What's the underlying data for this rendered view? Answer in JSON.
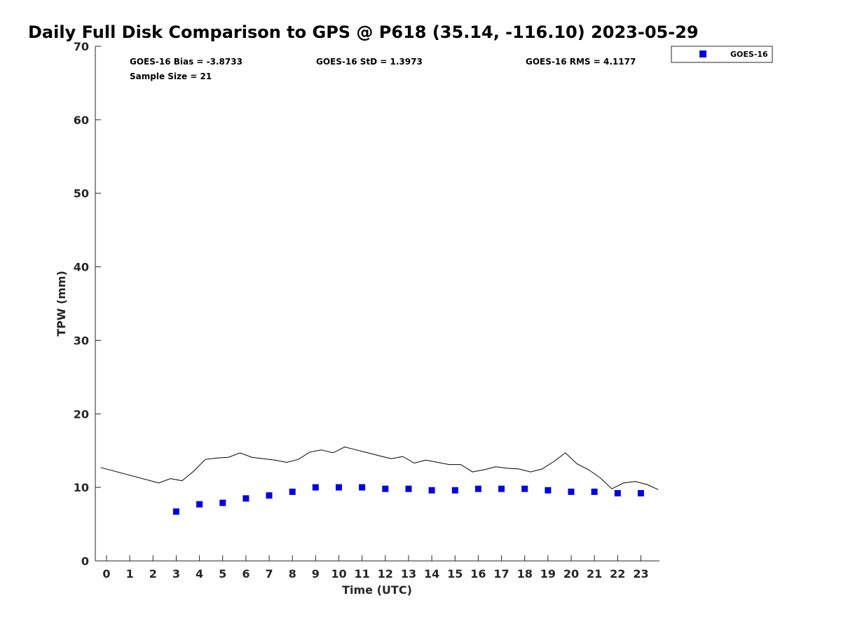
{
  "chart_data": {
    "type": "scatter",
    "title": "Daily Full Disk Comparison to GPS @ P618 (35.14, -116.10) 2023-05-29",
    "xlabel": "Time (UTC)",
    "ylabel": "TPW (mm)",
    "xlim": [
      -0.5,
      23.8
    ],
    "ylim": [
      0,
      70
    ],
    "x_ticks": [
      0,
      1,
      2,
      3,
      4,
      5,
      6,
      7,
      8,
      9,
      10,
      11,
      12,
      13,
      14,
      15,
      16,
      17,
      18,
      19,
      20,
      21,
      22,
      23
    ],
    "y_ticks": [
      0,
      10,
      20,
      30,
      40,
      50,
      60,
      70
    ],
    "grid": false,
    "legend_position": "top-right",
    "stats": {
      "bias": "GOES-16 Bias = -3.8733",
      "std": "GOES-16 StD = 1.3973",
      "rms": "GOES-16 RMS = 4.1177",
      "sample": "Sample Size = 21"
    },
    "series": [
      {
        "name": "GOES-16",
        "style": "markers",
        "color": "#0000e6",
        "x": [
          3,
          4,
          5,
          6,
          7,
          8,
          9,
          10,
          11,
          12,
          13,
          14,
          15,
          16,
          17,
          18,
          19,
          20,
          21,
          22,
          23
        ],
        "y": [
          6.7,
          7.7,
          7.9,
          8.5,
          8.9,
          9.4,
          10.0,
          10.0,
          10.0,
          9.8,
          9.8,
          9.6,
          9.6,
          9.8,
          9.8,
          9.8,
          9.6,
          9.4,
          9.4,
          9.2,
          9.2
        ]
      },
      {
        "style": "line",
        "color": "#000000",
        "x": [
          -0.25,
          2.25,
          2.75,
          3.25,
          3.75,
          4.25,
          4.75,
          5.25,
          5.75,
          6.25,
          6.75,
          7.25,
          7.75,
          8.25,
          8.75,
          9.25,
          9.75,
          10.25,
          10.75,
          11.25,
          11.75,
          12.25,
          12.75,
          13.25,
          13.75,
          14.25,
          14.75,
          15.25,
          15.75,
          16.25,
          16.75,
          17.25,
          17.75,
          18.25,
          18.75,
          19.25,
          19.75,
          20.25,
          20.75,
          21.25,
          21.75,
          22.25,
          22.75,
          23.25,
          23.75
        ],
        "y": [
          12.7,
          10.6,
          11.2,
          10.9,
          12.2,
          13.8,
          14.0,
          14.1,
          14.7,
          14.1,
          13.9,
          13.7,
          13.4,
          13.8,
          14.8,
          15.1,
          14.7,
          15.5,
          15.1,
          14.7,
          14.3,
          13.9,
          14.2,
          13.3,
          13.7,
          13.4,
          13.1,
          13.1,
          12.1,
          12.4,
          12.8,
          12.6,
          12.5,
          12.1,
          12.5,
          13.5,
          14.7,
          13.2,
          12.4,
          11.3,
          9.8,
          10.6,
          10.8,
          10.4,
          9.7
        ]
      }
    ]
  }
}
